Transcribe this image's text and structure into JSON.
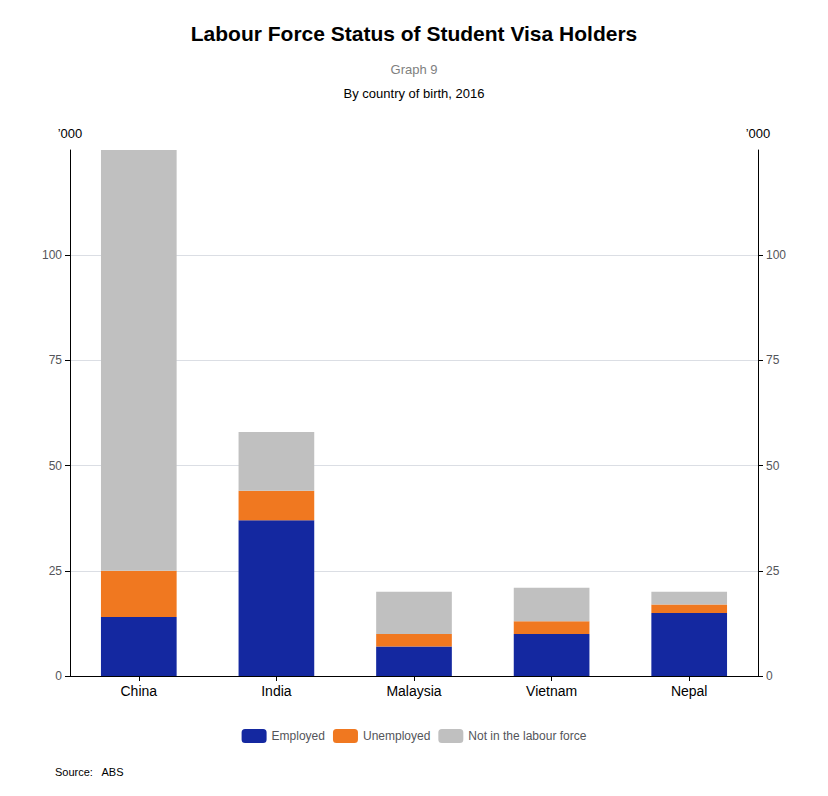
{
  "chart_data": {
    "type": "bar",
    "title": "Labour Force Status of Student Visa Holders",
    "subtitle": "By country of birth, 2016",
    "annotations": [
      "Graph 9",
      "Source:   ABS"
    ],
    "ylabel": "’000",
    "y2label": "’000",
    "categories": [
      "China",
      "India",
      "Malaysia",
      "Vietnam",
      "Nepal"
    ],
    "series": [
      {
        "name": "Employed",
        "color": "#1428a0",
        "values": [
          14,
          37,
          7,
          10,
          15
        ]
      },
      {
        "name": "Unemployed",
        "color": "#f07820",
        "values": [
          11,
          7,
          3,
          3,
          2
        ]
      },
      {
        "name": "Not in the labour force",
        "color": "#c0c0c0",
        "values": [
          100,
          14,
          10,
          8,
          3
        ]
      }
    ],
    "stacked": true,
    "ylim": [
      0,
      125
    ],
    "yticks": [
      0,
      25,
      50,
      75,
      100
    ],
    "y2lim": [
      0,
      125
    ],
    "y2ticks": [
      0,
      25,
      50,
      75,
      100
    ],
    "grid": true,
    "legend": "bottom"
  }
}
